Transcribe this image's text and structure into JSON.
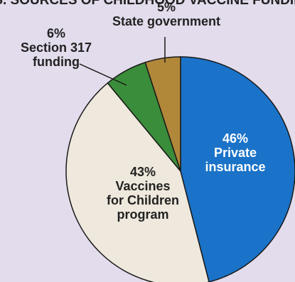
{
  "chart_data": {
    "type": "pie",
    "header_text": "U.S. SOURCES OF CHILDHOOD VACCINE FUNDING",
    "slices": [
      {
        "label_lines": [
          "Private",
          "insurance"
        ],
        "percent_text": "46%",
        "value": 46,
        "color": "#1a73c8",
        "label_color": "#ffffff"
      },
      {
        "label_lines": [
          "Vaccines",
          "for Children",
          "program"
        ],
        "percent_text": "43%",
        "value": 43,
        "color": "#efe9dd",
        "label_color": "#222222"
      },
      {
        "label_lines": [
          "Section 317",
          "funding"
        ],
        "percent_text": "6%",
        "value": 6,
        "color": "#3a8d3a",
        "label_color": "#222222"
      },
      {
        "label_lines": [
          "State government"
        ],
        "percent_text": "5%",
        "value": 5,
        "color": "#b1873a",
        "label_color": "#222222"
      }
    ],
    "start": "12 o'clock",
    "direction": "clockwise",
    "edge_color": "#1a1a1a"
  }
}
